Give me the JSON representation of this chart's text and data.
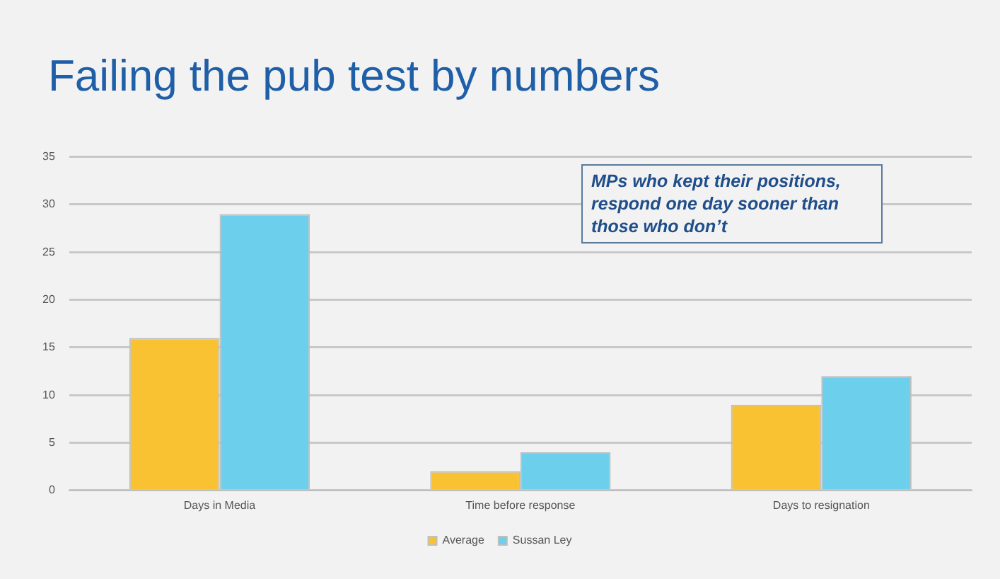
{
  "chart_data": {
    "type": "bar",
    "title": "Failing the pub test by numbers",
    "categories": [
      "Days in Media",
      "Time before response",
      "Days to resignation"
    ],
    "series": [
      {
        "name": "Average",
        "color": "#f9c232",
        "values": [
          16,
          2,
          9
        ]
      },
      {
        "name": "Sussan Ley",
        "color": "#6ccfec",
        "values": [
          29,
          4,
          12
        ]
      }
    ],
    "ylim": [
      0,
      35
    ],
    "yticks": [
      0,
      5,
      10,
      15,
      20,
      25,
      30,
      35
    ],
    "grid": "y",
    "legend": "bottom",
    "annotations": [
      "MPs who kept their positions, respond one day sooner than those who don’t"
    ]
  }
}
